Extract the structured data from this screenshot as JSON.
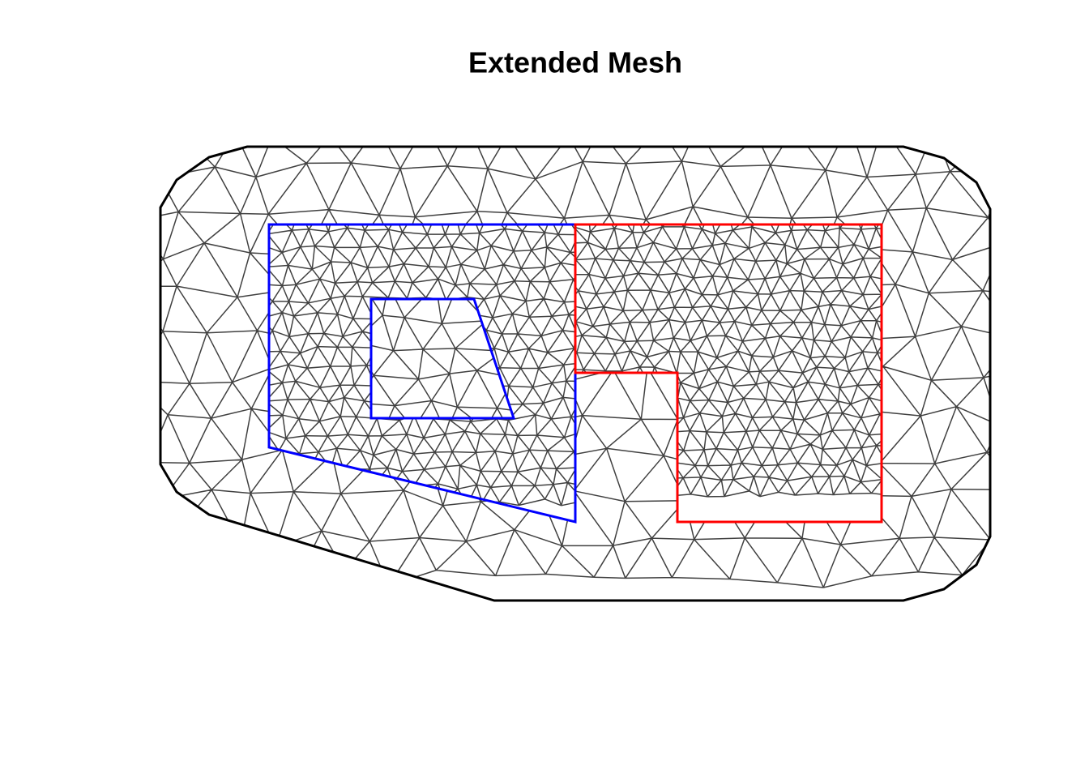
{
  "title": "Extended Mesh"
}
